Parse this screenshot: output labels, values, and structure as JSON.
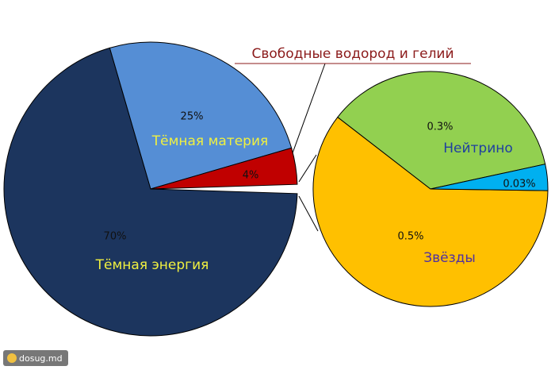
{
  "chart_data": [
    {
      "type": "pie",
      "names": [
        "Тёмная энергия",
        "Тёмная материя",
        "Свободные водород и гелий"
      ],
      "values": [
        70,
        25,
        4
      ],
      "value_labels": [
        "70%",
        "25%",
        "4%"
      ],
      "colors": [
        "#1c355e",
        "#558ed5",
        "#c00000"
      ]
    },
    {
      "type": "pie",
      "names": [
        "Звёзды",
        "Нейтрино",
        null
      ],
      "values": [
        0.5,
        0.3,
        0.03
      ],
      "value_labels": [
        "0.5%",
        "0.3%",
        "0.03%"
      ],
      "colors": [
        "#ffc000",
        "#92d050",
        "#00b0f0"
      ]
    }
  ],
  "watermark": "dosug.md"
}
